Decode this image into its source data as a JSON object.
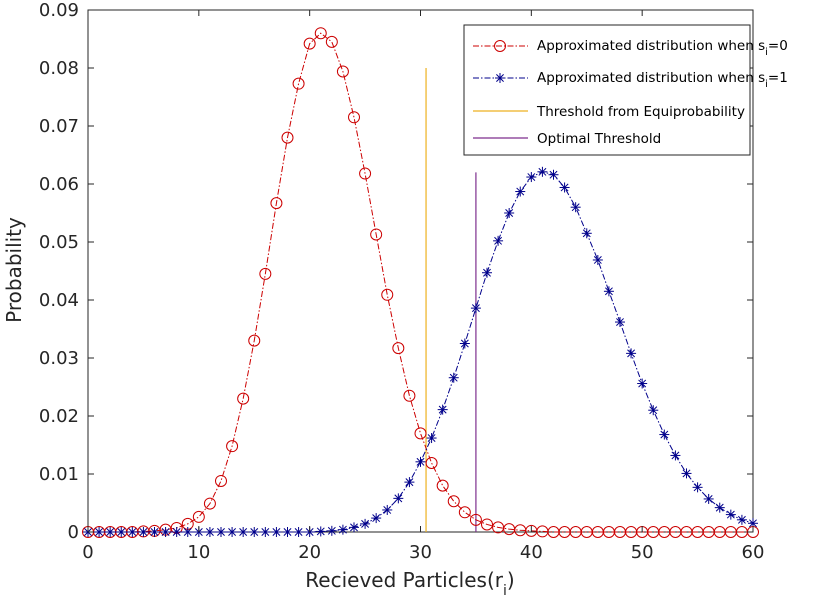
{
  "chart_data": {
    "type": "line",
    "xlabel": "Recieved Particles(r",
    "xlabel_sub": "i",
    "xlabel_close": ")",
    "ylabel": "Probability",
    "xlim": [
      0,
      60
    ],
    "ylim": [
      0,
      0.09
    ],
    "xticks": [
      0,
      10,
      20,
      30,
      40,
      50,
      60
    ],
    "yticks": [
      0,
      0.01,
      0.02,
      0.03,
      0.04,
      0.05,
      0.06,
      0.07,
      0.08,
      0.09
    ],
    "ytick_labels": [
      "0",
      "0.01",
      "0.02",
      "0.03",
      "0.04",
      "0.05",
      "0.06",
      "0.07",
      "0.08",
      "0.09"
    ],
    "grid": false,
    "legend_position": "top-right",
    "x": [
      0,
      1,
      2,
      3,
      4,
      5,
      6,
      7,
      8,
      9,
      10,
      11,
      12,
      13,
      14,
      15,
      16,
      17,
      18,
      19,
      20,
      21,
      22,
      23,
      24,
      25,
      26,
      27,
      28,
      29,
      30,
      31,
      32,
      33,
      34,
      35,
      36,
      37,
      38,
      39,
      40,
      41,
      42,
      43,
      44,
      45,
      46,
      47,
      48,
      49,
      50,
      51,
      52,
      53,
      54,
      55,
      56,
      57,
      58,
      59,
      60
    ],
    "series": [
      {
        "name": "Approximated distribution when s",
        "name_sub": "i",
        "name_suffix": "=0",
        "color": "#cc0000",
        "marker": "circle",
        "line_style": "dash-dot",
        "values": [
          0,
          0,
          0,
          0,
          0,
          0.0001,
          0.0002,
          0.0004,
          0.0007,
          0.0014,
          0.0026,
          0.0049,
          0.0088,
          0.0148,
          0.023,
          0.033,
          0.0445,
          0.0567,
          0.068,
          0.0773,
          0.0842,
          0.086,
          0.0845,
          0.0794,
          0.0715,
          0.0618,
          0.0513,
          0.0409,
          0.0317,
          0.0235,
          0.017,
          0.0119,
          0.008,
          0.0053,
          0.0034,
          0.0021,
          0.0013,
          0.0008,
          0.0005,
          0.0003,
          0.0002,
          0.0001,
          0,
          0,
          0,
          0,
          0,
          0,
          0,
          0,
          0,
          0,
          0,
          0,
          0,
          0,
          0,
          0,
          0,
          0,
          0
        ]
      },
      {
        "name": "Approximated distribution when s",
        "name_sub": "i",
        "name_suffix": "=1",
        "color": "#00008b",
        "marker": "star",
        "line_style": "dash-dot",
        "values": [
          0,
          0,
          0,
          0,
          0,
          0,
          0,
          0,
          0,
          0,
          0,
          0,
          0,
          0,
          0,
          0,
          0,
          0,
          0,
          0,
          0,
          0.0001,
          0.0002,
          0.0004,
          0.0008,
          0.0014,
          0.0024,
          0.0038,
          0.0058,
          0.0086,
          0.0121,
          0.0162,
          0.0211,
          0.0266,
          0.0325,
          0.0386,
          0.0447,
          0.0502,
          0.055,
          0.0587,
          0.0612,
          0.0621,
          0.0616,
          0.0594,
          0.056,
          0.0515,
          0.0469,
          0.0415,
          0.0362,
          0.0308,
          0.0256,
          0.021,
          0.0168,
          0.0132,
          0.0101,
          0.0077,
          0.0057,
          0.0042,
          0.003,
          0.0021,
          0.0015
        ]
      }
    ],
    "thresholds": [
      {
        "name": "Threshold from Equiprobability",
        "x": 30.5,
        "y_top": 0.08,
        "color": "#edb120"
      },
      {
        "name": "Optimal Threshold",
        "x": 35,
        "y_top": 0.062,
        "color": "#7e2f8e"
      }
    ]
  }
}
